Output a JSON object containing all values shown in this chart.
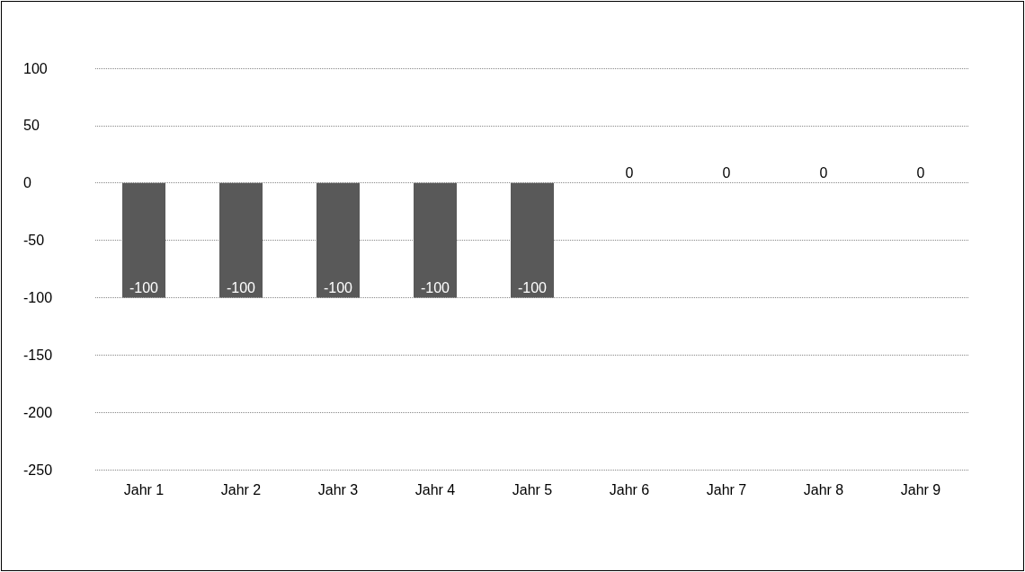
{
  "chart_data": {
    "type": "bar",
    "categories": [
      "Jahr 1",
      "Jahr 2",
      "Jahr 3",
      "Jahr 4",
      "Jahr 5",
      "Jahr 6",
      "Jahr 7",
      "Jahr 8",
      "Jahr 9"
    ],
    "values": [
      -100,
      -100,
      -100,
      -100,
      -100,
      0,
      0,
      0,
      0
    ],
    "color": "#595959",
    "ylim": [
      -250,
      100
    ],
    "yticks": [
      -250,
      -200,
      -150,
      -100,
      -50,
      0,
      50,
      100
    ],
    "grid": "y",
    "data_labels": true
  }
}
